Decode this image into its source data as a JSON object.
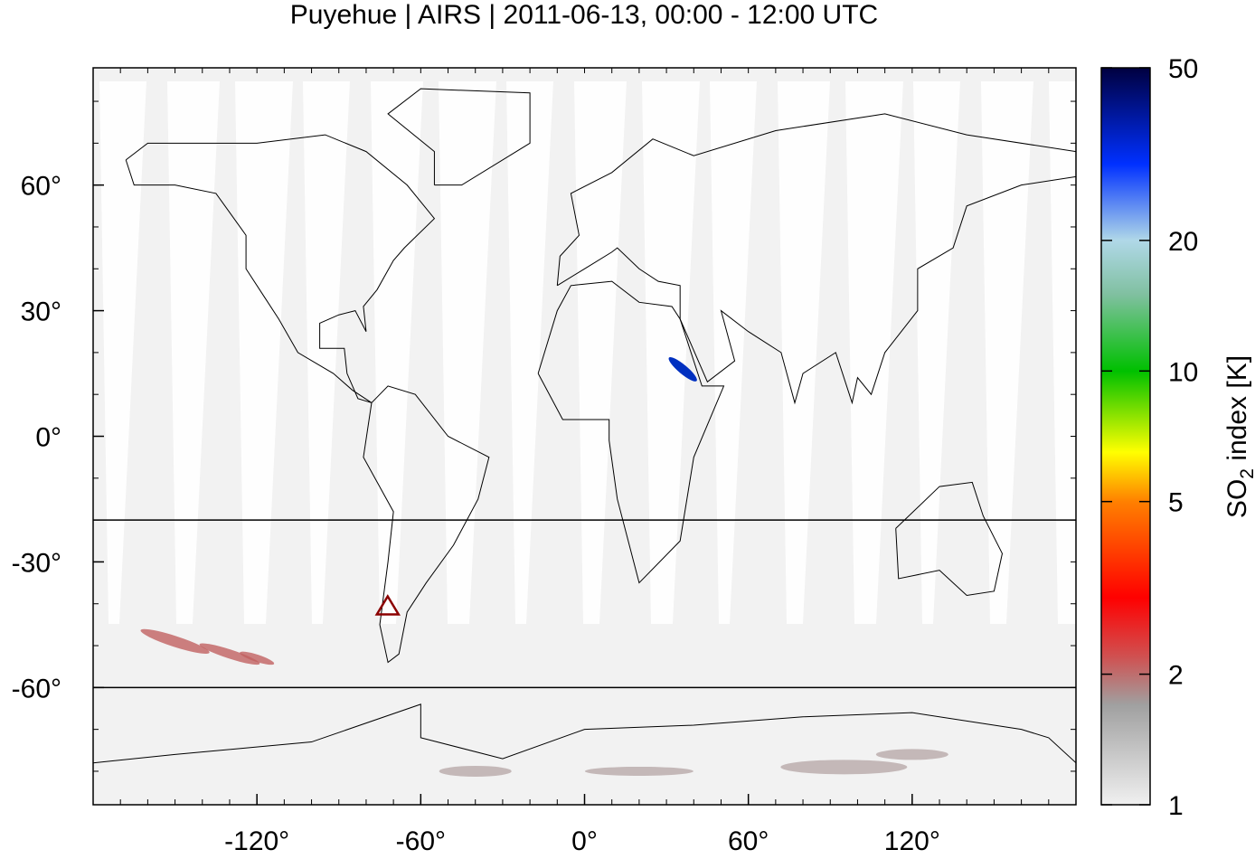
{
  "chart_data": {
    "type": "map",
    "title": "Puyehue | AIRS | 2011-06-13, 00:00 - 12:00 UTC",
    "xlim": [
      -180,
      180
    ],
    "ylim": [
      -88,
      88
    ],
    "xticks": [
      {
        "value": -120,
        "label": "-120°"
      },
      {
        "value": -60,
        "label": "-60°"
      },
      {
        "value": 0,
        "label": "0°"
      },
      {
        "value": 60,
        "label": "60°"
      },
      {
        "value": 120,
        "label": "120°"
      }
    ],
    "yticks": [
      {
        "value": 60,
        "label": "60°"
      },
      {
        "value": 30,
        "label": "30°"
      },
      {
        "value": 0,
        "label": "0°"
      },
      {
        "value": -30,
        "label": "-30°"
      },
      {
        "value": -60,
        "label": "-60°"
      }
    ],
    "reference_lines": [
      -20,
      -60
    ],
    "marker": {
      "lon": -72.1,
      "lat": -40.6,
      "color": "#8b0000"
    },
    "colorbar": {
      "label_parts": [
        "SO",
        "2",
        " index [K]"
      ],
      "scale": "log",
      "lim": [
        1,
        50
      ],
      "ticks": [
        1,
        2,
        5,
        10,
        20,
        50
      ],
      "colors": [
        [
          1,
          "#f0f0f0"
        ],
        [
          1.7,
          "#a0a0a0"
        ],
        [
          2.2,
          "#d05050"
        ],
        [
          3,
          "#ff0000"
        ],
        [
          5,
          "#ff8000"
        ],
        [
          6.5,
          "#ffff00"
        ],
        [
          10,
          "#00c000"
        ],
        [
          15,
          "#80c0a0"
        ],
        [
          20,
          "#b0d8e8"
        ],
        [
          30,
          "#0030ff"
        ],
        [
          50,
          "#000040"
        ]
      ]
    }
  }
}
